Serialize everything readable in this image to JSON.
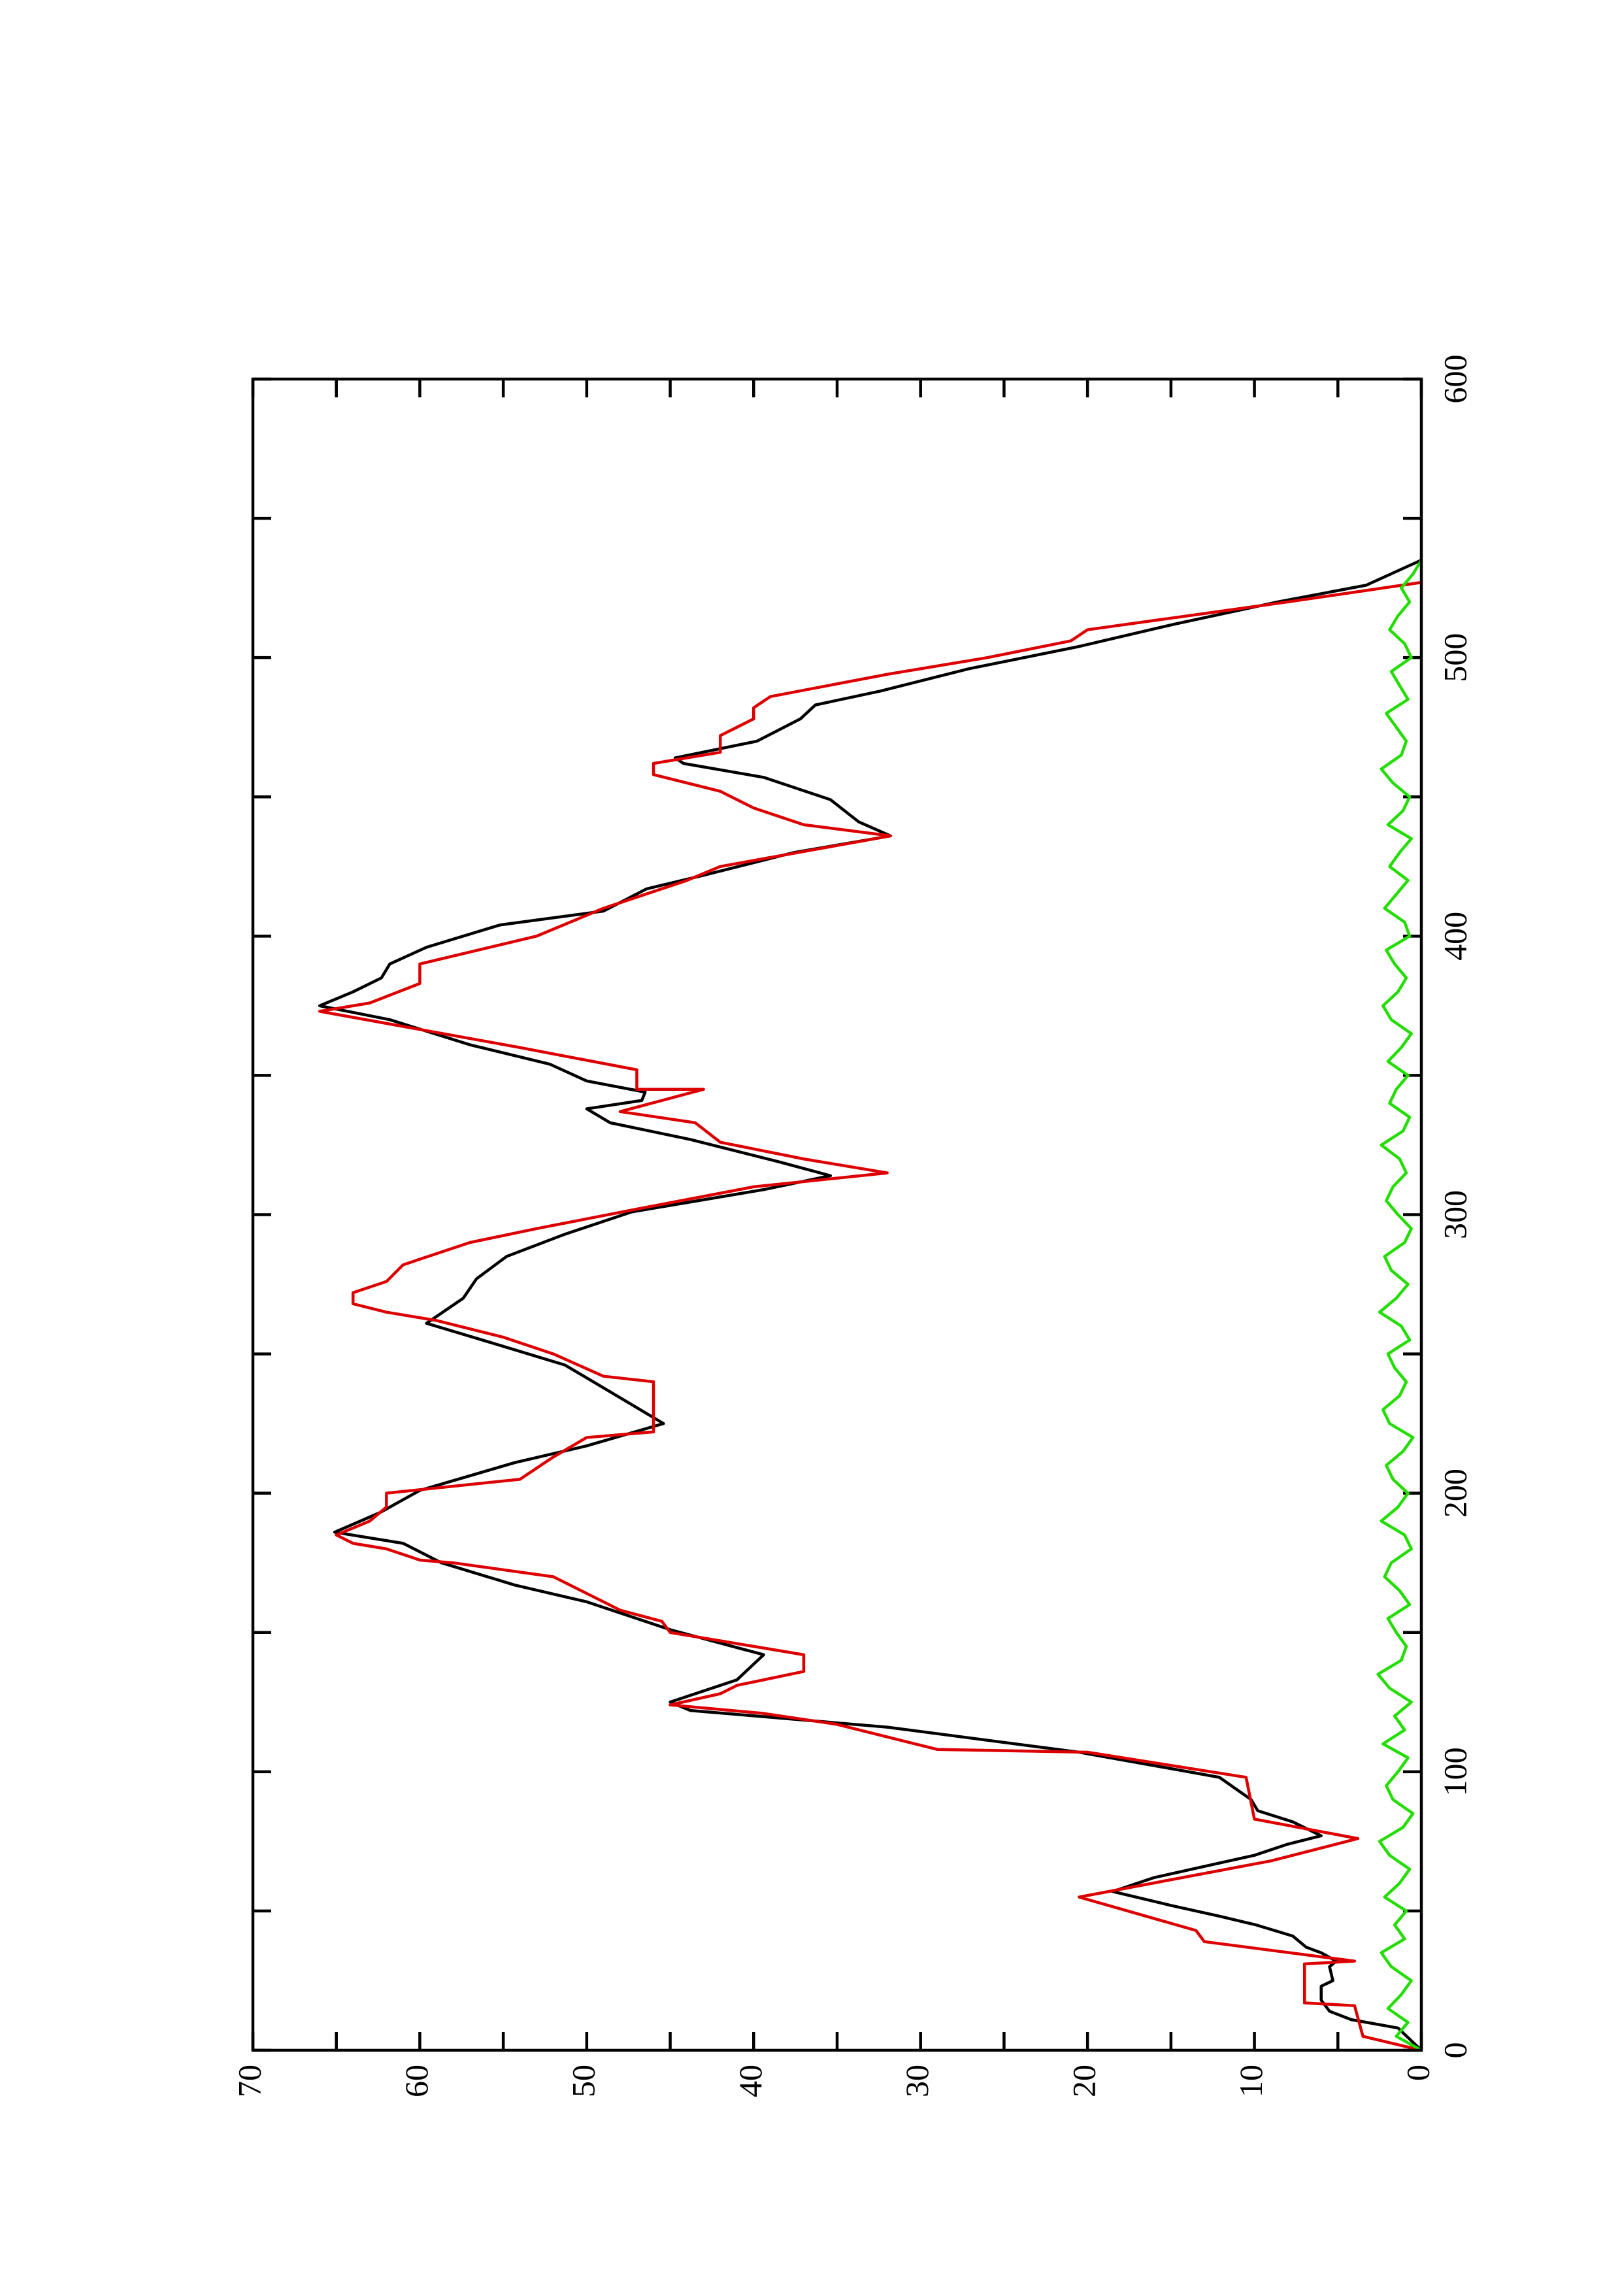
{
  "chart_data": {
    "type": "line",
    "xlim": [
      0,
      600
    ],
    "xticks": [
      0,
      100,
      200,
      300,
      400,
      500,
      600
    ],
    "xminorticks": [
      50,
      150,
      250,
      350,
      450,
      550
    ],
    "ylim": [
      0,
      70
    ],
    "yticks": [
      0,
      10,
      20,
      30,
      40,
      50,
      60,
      70
    ],
    "yminorticks": [
      5,
      15,
      25,
      35,
      45,
      55,
      65
    ],
    "rotation": -90,
    "series": [
      {
        "color": "#000000",
        "x": [
          0,
          8,
          11,
          14,
          18,
          23,
          25,
          30,
          32,
          35,
          37,
          41,
          45,
          48,
          52,
          57,
          62,
          66,
          70,
          74,
          77,
          82,
          86,
          90,
          98,
          107,
          116,
          122,
          125,
          133,
          142,
          151,
          161,
          167,
          175,
          182,
          186,
          193,
          201,
          211,
          217,
          225,
          235,
          246,
          254,
          261,
          270,
          277,
          285,
          293,
          301,
          309,
          314,
          319,
          327,
          333,
          338,
          341,
          344,
          348,
          354,
          361,
          370,
          375,
          380,
          385,
          390,
          396,
          404,
          409,
          417,
          422,
          430,
          436,
          441,
          449,
          457,
          462,
          464,
          470,
          478,
          483,
          488,
          496,
          504,
          512,
          520,
          526,
          535
        ],
        "values": [
          0,
          1.4,
          4.2,
          5.5,
          6,
          6,
          5.3,
          5.5,
          5.1,
          6,
          6.9,
          7.7,
          9.9,
          12,
          15,
          18.5,
          16,
          13,
          10,
          8,
          6,
          7.7,
          9.8,
          10.2,
          12.1,
          20.5,
          32,
          43.8,
          45,
          41,
          39.4,
          45,
          50,
          54.3,
          58.7,
          61,
          65.1,
          62.4,
          60,
          54.3,
          50,
          45.4,
          48.2,
          51.3,
          55.7,
          59.6,
          57.4,
          56.6,
          54.8,
          51.3,
          47.3,
          39.4,
          35.4,
          38.5,
          43.8,
          48.6,
          50,
          46.7,
          46.5,
          50,
          52.2,
          57,
          61.8,
          66,
          64,
          62.3,
          61.8,
          59.6,
          55.2,
          49,
          46.4,
          42.9,
          37.6,
          31.8,
          33.7,
          35.4,
          39.4,
          44.2,
          44.7,
          39.8,
          37.2,
          36.3,
          32.4,
          27.1,
          20.5,
          14.8,
          8.6,
          3.3,
          0
        ]
      },
      {
        "color": "#dd0000",
        "x": [
          0,
          5,
          16,
          17,
          31,
          32,
          39,
          43,
          55,
          68,
          76,
          83,
          98,
          107,
          108,
          117,
          121,
          124,
          128,
          131,
          136,
          142,
          150,
          154,
          158,
          170,
          175,
          176,
          180,
          182,
          185,
          190,
          195,
          200,
          205,
          213,
          220,
          222,
          240,
          242,
          250,
          256,
          262,
          265,
          268,
          272,
          276,
          282,
          290,
          295,
          302,
          310,
          315,
          320,
          326,
          333,
          337,
          345,
          345,
          352,
          360,
          373,
          376,
          383,
          390,
          400,
          410,
          420,
          425,
          436,
          440,
          446,
          452,
          458,
          462,
          466,
          472,
          478,
          482,
          486,
          494,
          500,
          506,
          510,
          520,
          527
        ],
        "values": [
          0,
          3.5,
          4,
          7,
          7,
          4,
          13,
          13.5,
          20.5,
          9,
          3.8,
          10,
          10.5,
          20,
          29,
          35,
          39.5,
          45,
          42,
          41,
          37,
          37,
          45,
          45.5,
          48,
          52,
          58,
          60,
          62,
          64,
          65,
          63,
          62,
          62,
          54,
          52,
          50,
          46,
          46,
          49,
          52,
          55,
          59,
          62,
          64,
          64,
          62,
          61,
          57,
          53,
          47,
          40,
          32,
          37,
          42,
          43.5,
          48,
          43,
          47,
          47,
          54,
          66,
          63,
          60,
          60,
          53,
          49,
          44,
          42,
          31.8,
          37,
          40,
          42,
          46,
          46,
          42,
          42,
          40,
          40,
          39,
          32,
          26,
          21,
          20,
          8,
          0
        ]
      },
      {
        "color": "#22dd00",
        "x": [
          0,
          5,
          10,
          15,
          20,
          25,
          30,
          35,
          40,
          45,
          50,
          55,
          60,
          65,
          70,
          75,
          80,
          85,
          90,
          95,
          100,
          105,
          110,
          115,
          120,
          125,
          130,
          135,
          140,
          145,
          150,
          155,
          160,
          165,
          170,
          175,
          180,
          185,
          190,
          195,
          200,
          205,
          210,
          215,
          220,
          225,
          230,
          235,
          240,
          245,
          250,
          255,
          260,
          265,
          270,
          275,
          280,
          285,
          290,
          295,
          300,
          305,
          310,
          315,
          320,
          325,
          330,
          335,
          340,
          345,
          350,
          355,
          360,
          365,
          370,
          375,
          380,
          385,
          390,
          395,
          400,
          405,
          410,
          415,
          420,
          425,
          430,
          435,
          440,
          445,
          450,
          455,
          460,
          465,
          470,
          475,
          480,
          485,
          490,
          495,
          500,
          505,
          510,
          515,
          520,
          525,
          530,
          535
        ],
        "values": [
          0,
          1.5,
          0.8,
          2.0,
          1.2,
          0.6,
          1.8,
          2.4,
          1.0,
          1.6,
          0.9,
          2.2,
          1.3,
          0.7,
          1.9,
          2.5,
          1.1,
          0.5,
          1.7,
          2.1,
          1.4,
          0.8,
          2.3,
          1.0,
          1.6,
          0.6,
          1.9,
          2.6,
          1.2,
          0.9,
          1.5,
          2.0,
          0.7,
          1.3,
          2.2,
          1.8,
          0.6,
          1.0,
          2.4,
          1.4,
          0.8,
          1.7,
          2.1,
          1.1,
          0.5,
          1.9,
          2.3,
          1.3,
          0.9,
          1.6,
          2.0,
          0.7,
          1.2,
          2.5,
          1.5,
          0.8,
          1.8,
          2.2,
          1.0,
          0.6,
          1.4,
          2.1,
          1.7,
          0.9,
          1.3,
          2.4,
          1.1,
          0.7,
          1.9,
          1.5,
          0.8,
          2.0,
          1.2,
          0.6,
          1.8,
          2.3,
          1.4,
          0.9,
          1.6,
          2.1,
          0.7,
          1.0,
          2.2,
          1.5,
          0.8,
          1.9,
          1.3,
          0.6,
          2.0,
          1.1,
          0.7,
          1.7,
          2.4,
          1.2,
          0.9,
          1.5,
          2.1,
          0.8,
          1.3,
          1.8,
          0.6,
          1.0,
          1.9,
          1.4,
          0.7,
          1.2,
          0.5,
          0
        ]
      }
    ]
  }
}
